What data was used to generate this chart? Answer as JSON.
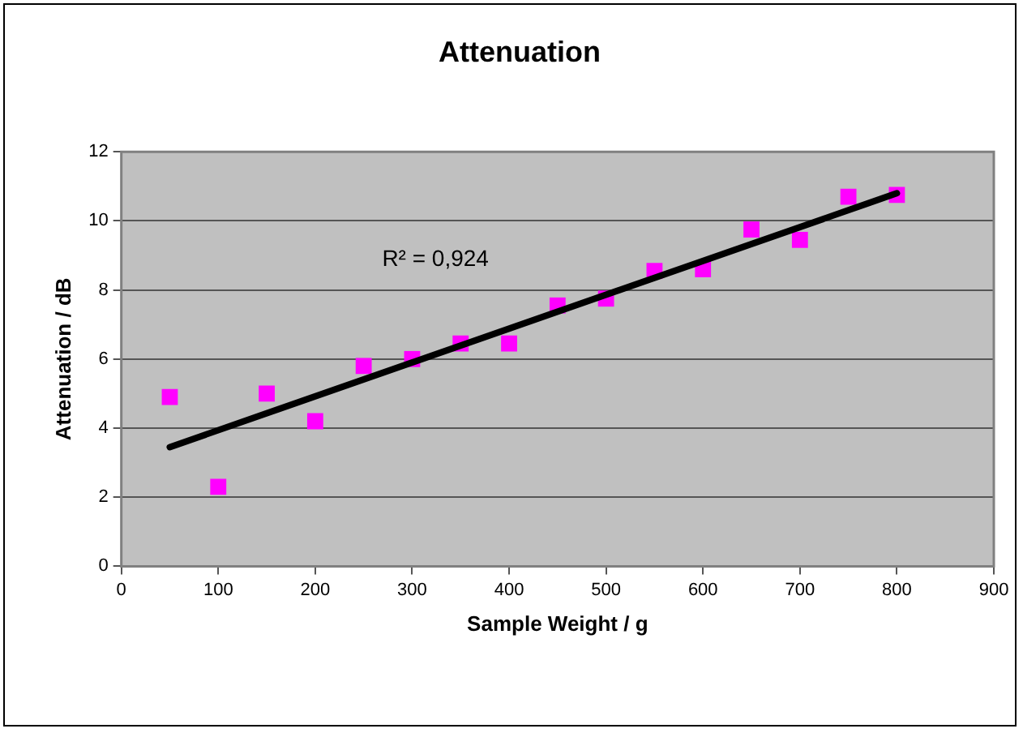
{
  "chart_data": {
    "type": "scatter",
    "title": "Attenuation",
    "xlabel": "Sample Weight / g",
    "ylabel": "Attenuation / dB",
    "x": [
      50,
      100,
      150,
      200,
      250,
      300,
      350,
      400,
      450,
      500,
      550,
      600,
      650,
      700,
      750,
      800
    ],
    "series": [
      {
        "color": "#ff00ff",
        "marker": "square",
        "values": [
          4.9,
          2.3,
          5.0,
          4.2,
          5.8,
          6.0,
          6.45,
          6.45,
          7.55,
          7.75,
          8.55,
          8.6,
          9.75,
          9.45,
          10.7,
          10.75
        ]
      },
      {
        "type": "line",
        "color": "#000000",
        "marker": "none",
        "x": [
          50,
          800
        ],
        "values": [
          3.45,
          10.8
        ]
      }
    ],
    "annotations": [
      "R² = 0,924"
    ],
    "xlim": [
      0,
      900
    ],
    "xticks": [
      0,
      100,
      200,
      300,
      400,
      500,
      600,
      700,
      800,
      900
    ],
    "ylim": [
      0,
      12
    ],
    "yticks": [
      0,
      2,
      4,
      6,
      8,
      10,
      12
    ],
    "grid": "y",
    "legend": false
  }
}
